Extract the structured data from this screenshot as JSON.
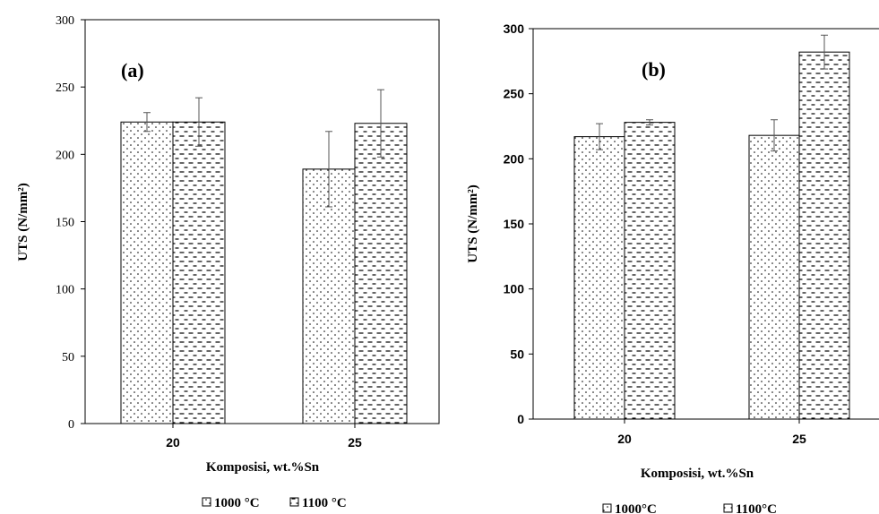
{
  "chart_data": [
    {
      "type": "bar",
      "panel_label": "(a)",
      "categories": [
        "20",
        "25"
      ],
      "series": [
        {
          "name": "1000 °C",
          "values": [
            224,
            189
          ],
          "errors": [
            7,
            28
          ]
        },
        {
          "name": "1100 °C",
          "values": [
            224,
            223
          ],
          "errors": [
            18,
            25
          ]
        }
      ],
      "xlabel": "Komposisi, wt.%Sn",
      "ylabel": "UTS (N/mm²)",
      "ylim": [
        0,
        300
      ],
      "yticks": [
        "0",
        "50",
        "100",
        "150",
        "200",
        "250",
        "300"
      ],
      "grid": false,
      "legend": "bottom"
    },
    {
      "type": "bar",
      "panel_label": "(b)",
      "categories": [
        "20",
        "25"
      ],
      "series": [
        {
          "name": "1000°C",
          "values": [
            217,
            218
          ],
          "errors": [
            10,
            12
          ]
        },
        {
          "name": "1100°C",
          "values": [
            228,
            282
          ],
          "errors": [
            2,
            13
          ]
        }
      ],
      "xlabel": "Komposisi, wt.%Sn",
      "ylabel": "UTS (N/mm²)",
      "ylim": [
        0,
        300
      ],
      "yticks": [
        "0",
        "50",
        "100",
        "150",
        "200",
        "250",
        "300"
      ],
      "grid": false,
      "legend": "bottom"
    }
  ],
  "colors": {
    "bar_fill": "#ffffff",
    "bar_stroke": "#000000",
    "pattern_ink": "#000000",
    "error_bar": "#555555"
  }
}
